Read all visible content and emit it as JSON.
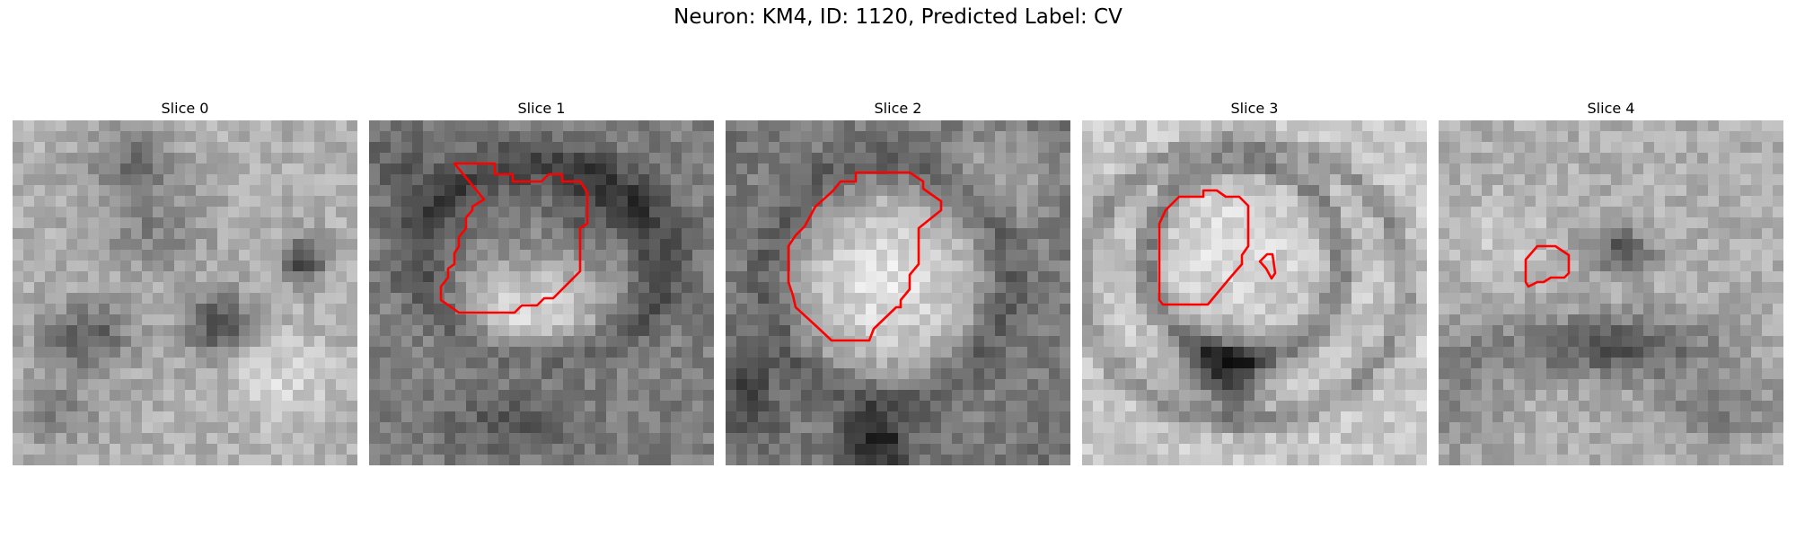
{
  "figure": {
    "title": "Neuron: KM4, ID: 1120, Predicted Label: CV"
  },
  "slices": [
    {
      "title": "Slice 0",
      "has_contour": false
    },
    {
      "title": "Slice 1",
      "has_contour": true
    },
    {
      "title": "Slice 2",
      "has_contour": true
    },
    {
      "title": "Slice 3",
      "has_contour": true
    },
    {
      "title": "Slice 4",
      "has_contour": true
    }
  ],
  "colors": {
    "contour": "#ff0000",
    "background": "#ffffff"
  }
}
